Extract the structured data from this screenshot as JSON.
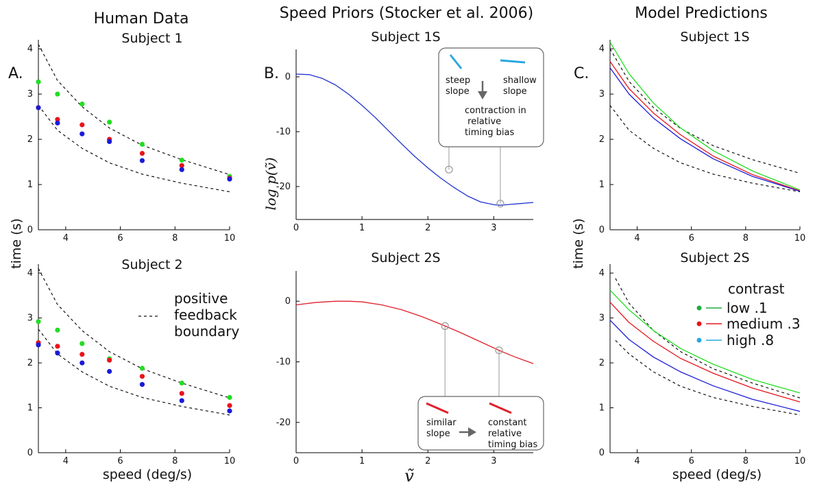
{
  "figure": {
    "col_titles": [
      "Human Data",
      "Speed Priors (Stocker et al. 2006)",
      "Model Predictions"
    ],
    "panel_labels": [
      "A.",
      "B.",
      "C."
    ]
  },
  "colors": {
    "low": "#22dd22",
    "medium": "#e8141c",
    "high": "#1a1ad8",
    "prior1": "#1f33cc",
    "prior2": "#e01e2a",
    "boundary": "#111111",
    "pointer": "#aaaaaa"
  },
  "annotations": {
    "b1": {
      "left_label": "steep\nslope",
      "right_label": "shallow\nslope",
      "result": "contraction in\n relative\ntiming bias",
      "left_color": "#29a8e0",
      "right_color": "#29a8e0",
      "arrow_icon": "down-arrow-icon"
    },
    "b2": {
      "left_label": "similar\nslope",
      "result": "constant\nrelative\ntiming bias",
      "left_color": "#e0202a",
      "right_color": "#e0202a",
      "arrow_icon": "right-arrow-icon"
    }
  },
  "legend_a": {
    "entries": [
      "positive\nfeedback\nboundary"
    ]
  },
  "legend_c": {
    "title": "contrast",
    "entries": [
      "low .1",
      "medium .3",
      "high .8"
    ],
    "colors": [
      "#22aa44",
      "#e8141c",
      "#29a8e0"
    ]
  },
  "chart_data": [
    {
      "type": "scatter",
      "subtitle": "Subject 1",
      "xlabel": "",
      "ylabel": "time (s)",
      "xlim": [
        3,
        10
      ],
      "ylim": [
        0,
        4.2
      ],
      "xticks": [
        4,
        6,
        8,
        10
      ],
      "yticks": [
        0,
        1,
        2,
        3,
        4
      ],
      "x": [
        3,
        3.7,
        4.6,
        5.6,
        6.8,
        8.25,
        10
      ],
      "series": [
        {
          "name": "low .1",
          "color": "#22dd22",
          "values": [
            3.27,
            3.0,
            2.78,
            2.38,
            1.89,
            1.54,
            1.18
          ]
        },
        {
          "name": "medium .3",
          "color": "#e8141c",
          "values": [
            2.7,
            2.44,
            2.32,
            2.0,
            1.69,
            1.42,
            1.14
          ]
        },
        {
          "name": "high .8",
          "color": "#1a1ad8",
          "values": [
            2.7,
            2.36,
            2.12,
            1.95,
            1.53,
            1.33,
            1.12
          ]
        }
      ],
      "boundary": {
        "x": [
          3,
          3.7,
          4.6,
          5.6,
          6.8,
          8.25,
          10
        ],
        "upper": [
          4.1,
          3.3,
          2.72,
          2.25,
          1.87,
          1.55,
          1.22
        ],
        "lower": [
          2.75,
          2.2,
          1.8,
          1.48,
          1.23,
          1.03,
          0.84
        ]
      }
    },
    {
      "type": "scatter",
      "subtitle": "Subject 2",
      "xlabel": "speed (deg/s)",
      "ylabel": "",
      "xlim": [
        3,
        10
      ],
      "ylim": [
        0,
        4.2
      ],
      "xticks": [
        4,
        6,
        8,
        10
      ],
      "yticks": [
        0,
        1,
        2,
        3,
        4
      ],
      "x": [
        3,
        3.7,
        4.6,
        5.6,
        6.8,
        8.25,
        10
      ],
      "series": [
        {
          "name": "low .1",
          "color": "#22dd22",
          "values": [
            2.92,
            2.73,
            2.43,
            2.09,
            1.88,
            1.55,
            1.23
          ]
        },
        {
          "name": "medium .3",
          "color": "#e8141c",
          "values": [
            2.45,
            2.37,
            2.19,
            2.06,
            1.7,
            1.32,
            1.05
          ]
        },
        {
          "name": "high .8",
          "color": "#1a1ad8",
          "values": [
            2.4,
            2.22,
            2.0,
            1.81,
            1.52,
            1.16,
            0.93
          ]
        }
      ],
      "boundary": {
        "x": [
          3,
          3.7,
          4.6,
          5.6,
          6.8,
          8.25,
          10
        ],
        "upper": [
          4.1,
          3.3,
          2.72,
          2.25,
          1.87,
          1.55,
          1.22
        ],
        "lower": [
          2.75,
          2.2,
          1.8,
          1.48,
          1.23,
          1.03,
          0.84
        ]
      }
    },
    {
      "type": "line",
      "subtitle": "Subject 1S",
      "xlabel": "",
      "ylabel": "log p(ṽ)",
      "xlim": [
        0,
        3.6
      ],
      "ylim": [
        -26,
        5
      ],
      "xticks": [
        0,
        1,
        2,
        3
      ],
      "yticks": [
        0,
        -10,
        -20
      ],
      "series": [
        {
          "color": "#1f33cc",
          "x": [
            0,
            0.2,
            0.4,
            0.6,
            0.8,
            1.0,
            1.2,
            1.4,
            1.6,
            1.8,
            2.0,
            2.2,
            2.4,
            2.6,
            2.8,
            3.0,
            3.1,
            3.2,
            3.4,
            3.6
          ],
          "y": [
            0.5,
            0.4,
            -0.3,
            -1.5,
            -3.2,
            -5.2,
            -7.4,
            -9.8,
            -12.2,
            -14.5,
            -16.6,
            -18.5,
            -20.2,
            -21.7,
            -22.8,
            -23.3,
            -23.4,
            -23.3,
            -23.1,
            -22.9
          ]
        }
      ],
      "markers": [
        {
          "x": 2.32,
          "y": -16.9
        },
        {
          "x": 3.1,
          "y": -23.1
        }
      ]
    },
    {
      "type": "line",
      "subtitle": "Subject 2S",
      "xlabel": "ṽ",
      "ylabel": "",
      "xlim": [
        0,
        3.6
      ],
      "ylim": [
        -25,
        5
      ],
      "xticks": [
        0,
        1,
        2,
        3
      ],
      "yticks": [
        0,
        -10,
        -20
      ],
      "series": [
        {
          "color": "#e01e2a",
          "x": [
            0,
            0.3,
            0.6,
            0.8,
            1.0,
            1.3,
            1.6,
            1.9,
            2.2,
            2.5,
            2.8,
            3.1,
            3.3,
            3.6
          ],
          "y": [
            -0.6,
            -0.2,
            0.0,
            0.0,
            -0.1,
            -0.6,
            -1.4,
            -2.5,
            -3.8,
            -5.2,
            -6.7,
            -8.2,
            -9.1,
            -10.3
          ]
        }
      ],
      "markers": [
        {
          "x": 2.26,
          "y": -4.1
        },
        {
          "x": 3.08,
          "y": -8.1
        }
      ]
    },
    {
      "type": "line",
      "subtitle": "Subject 1S",
      "xlabel": "",
      "ylabel": "",
      "xlim": [
        3,
        10
      ],
      "ylim": [
        0,
        4.2
      ],
      "xticks": [
        4,
        6,
        8,
        10
      ],
      "yticks": [
        0,
        1,
        2,
        3,
        4
      ],
      "series": [
        {
          "name": "low .1",
          "color": "#22dd22",
          "x": [
            3,
            3.7,
            4.6,
            5.6,
            6.8,
            8.25,
            10
          ],
          "y": [
            4.15,
            3.45,
            2.8,
            2.25,
            1.75,
            1.3,
            0.88
          ]
        },
        {
          "name": "medium .3",
          "color": "#e8141c",
          "x": [
            3,
            3.7,
            4.6,
            5.6,
            6.8,
            8.25,
            10
          ],
          "y": [
            3.72,
            3.12,
            2.58,
            2.1,
            1.63,
            1.22,
            0.86
          ]
        },
        {
          "name": "high .8",
          "color": "#1a1ad8",
          "x": [
            3,
            3.7,
            4.6,
            5.6,
            6.8,
            8.25,
            10
          ],
          "y": [
            3.58,
            3.0,
            2.47,
            2.01,
            1.57,
            1.18,
            0.85
          ]
        }
      ],
      "boundary": {
        "x": [
          3,
          3.7,
          4.6,
          5.6,
          6.8,
          8.25,
          10
        ],
        "upper": [
          4.0,
          3.28,
          2.7,
          2.24,
          1.86,
          1.55,
          1.25
        ],
        "lower": [
          2.75,
          2.2,
          1.8,
          1.48,
          1.23,
          1.03,
          0.84
        ]
      }
    },
    {
      "type": "line",
      "subtitle": "Subject 2S",
      "xlabel": "speed (deg/s)",
      "ylabel": "time (s)",
      "xlim": [
        3,
        10
      ],
      "ylim": [
        0,
        4.2
      ],
      "xticks": [
        4,
        6,
        8,
        10
      ],
      "yticks": [
        0,
        1,
        2,
        3,
        4
      ],
      "series": [
        {
          "name": "low .1",
          "color": "#22dd22",
          "x": [
            3,
            3.7,
            4.6,
            5.6,
            6.8,
            8.25,
            10
          ],
          "y": [
            3.62,
            3.18,
            2.72,
            2.32,
            1.97,
            1.63,
            1.33
          ]
        },
        {
          "name": "medium .3",
          "color": "#e8141c",
          "x": [
            3,
            3.7,
            4.6,
            5.6,
            6.8,
            8.25,
            10
          ],
          "y": [
            3.35,
            2.9,
            2.48,
            2.1,
            1.77,
            1.44,
            1.13
          ]
        },
        {
          "name": "high .8",
          "color": "#1a1ad8",
          "x": [
            3,
            3.7,
            4.6,
            5.6,
            6.8,
            8.25,
            10
          ],
          "y": [
            2.95,
            2.52,
            2.13,
            1.8,
            1.49,
            1.19,
            0.92
          ]
        }
      ],
      "boundary": {
        "x": [
          3.2,
          3.7,
          4.6,
          5.6,
          6.8,
          8.25,
          10
        ],
        "upper": [
          3.88,
          3.33,
          2.72,
          2.25,
          1.87,
          1.55,
          1.22
        ],
        "lower": [
          2.5,
          2.2,
          1.8,
          1.48,
          1.23,
          1.03,
          0.84
        ]
      }
    }
  ]
}
